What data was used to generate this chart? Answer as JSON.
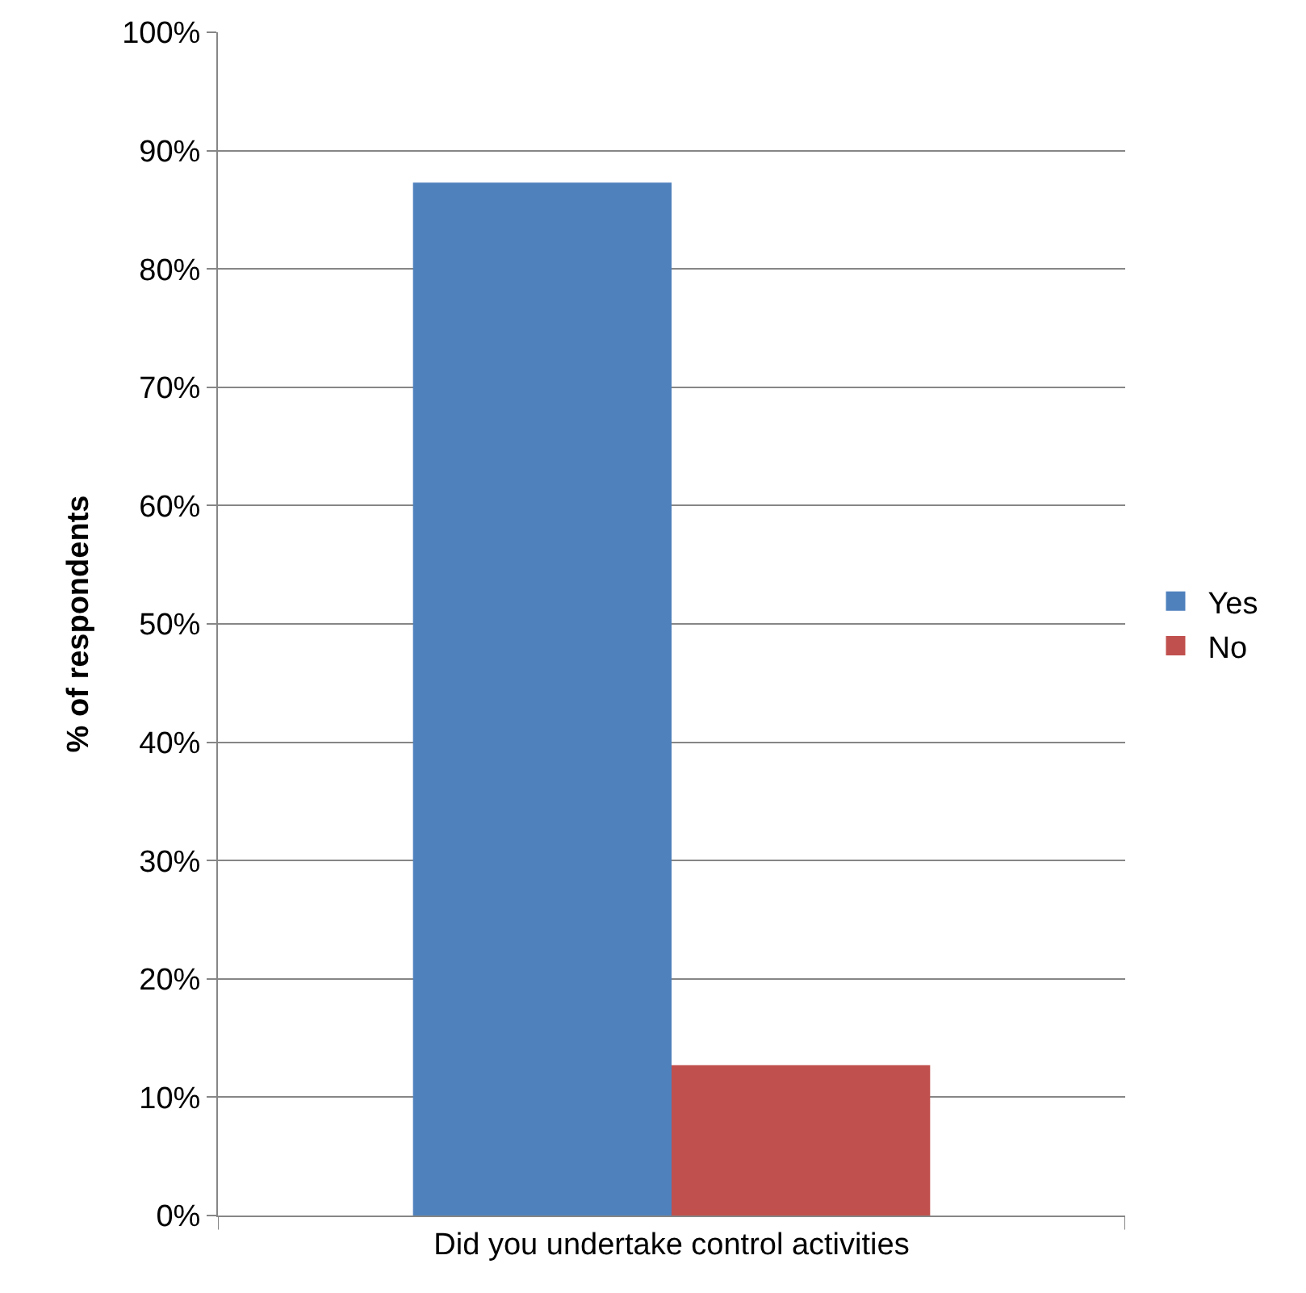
{
  "chart_data": {
    "type": "bar",
    "ylabel": "% of respondents",
    "categories": [
      "Did you undertake control activities"
    ],
    "series": [
      {
        "name": "Yes",
        "color": "#4f81bd",
        "values": [
          87.3
        ]
      },
      {
        "name": "No",
        "color": "#c0504d",
        "values": [
          12.7
        ]
      }
    ],
    "ylim": [
      0,
      100
    ],
    "yticks": [
      {
        "value": 0,
        "label": "0%"
      },
      {
        "value": 10,
        "label": "10%"
      },
      {
        "value": 20,
        "label": "20%"
      },
      {
        "value": 30,
        "label": "30%"
      },
      {
        "value": 40,
        "label": "40%"
      },
      {
        "value": 50,
        "label": "50%"
      },
      {
        "value": 60,
        "label": "60%"
      },
      {
        "value": 70,
        "label": "70%"
      },
      {
        "value": 80,
        "label": "80%"
      },
      {
        "value": 90,
        "label": "90%"
      },
      {
        "value": 100,
        "label": "100%"
      }
    ],
    "grid": "y",
    "legend": "right"
  }
}
